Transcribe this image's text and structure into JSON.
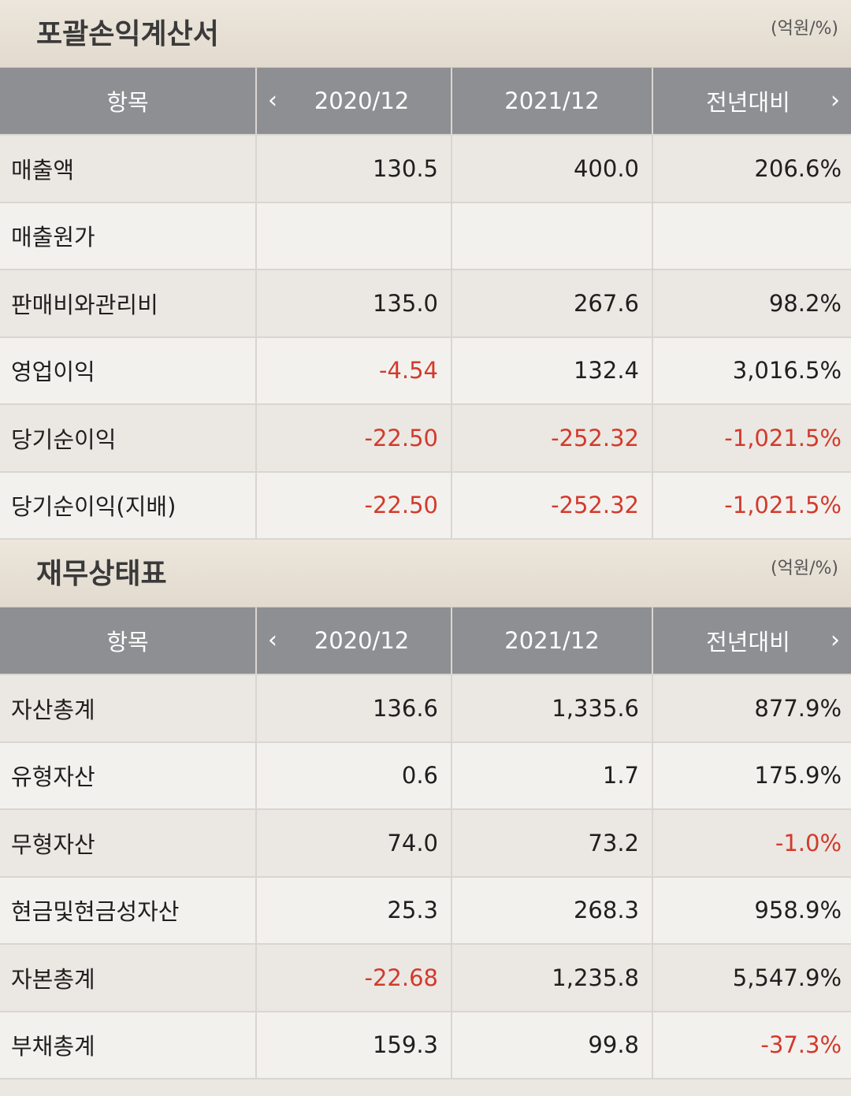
{
  "income": {
    "title": "포괄손익계산서",
    "unit": "(억원/%)",
    "headers": {
      "item": "항목",
      "prev_icon": "chevron-left-icon",
      "col1": "2020/12",
      "col2": "2021/12",
      "col3": "전년대비",
      "next_icon": "chevron-right-icon"
    },
    "rows": [
      {
        "label": "매출액",
        "v1": "130.5",
        "v2": "400.0",
        "v3": "206.6%"
      },
      {
        "label": "매출원가",
        "v1": "",
        "v2": "",
        "v3": ""
      },
      {
        "label": "판매비와관리비",
        "v1": "135.0",
        "v2": "267.6",
        "v3": "98.2%"
      },
      {
        "label": "영업이익",
        "v1": "-4.54",
        "v2": "132.4",
        "v3": "3,016.5%"
      },
      {
        "label": "당기순이익",
        "v1": "-22.50",
        "v2": "-252.32",
        "v3": "-1,021.5%"
      },
      {
        "label": "당기순이익(지배)",
        "v1": "-22.50",
        "v2": "-252.32",
        "v3": "-1,021.5%"
      }
    ]
  },
  "balance": {
    "title": "재무상태표",
    "unit": "(억원/%)",
    "headers": {
      "item": "항목",
      "prev_icon": "chevron-left-icon",
      "col1": "2020/12",
      "col2": "2021/12",
      "col3": "전년대비",
      "next_icon": "chevron-right-icon"
    },
    "rows": [
      {
        "label": "자산총계",
        "v1": "136.6",
        "v2": "1,335.6",
        "v3": "877.9%"
      },
      {
        "label": "유형자산",
        "v1": "0.6",
        "v2": "1.7",
        "v3": "175.9%"
      },
      {
        "label": "무형자산",
        "v1": "74.0",
        "v2": "73.2",
        "v3": "-1.0%"
      },
      {
        "label": "현금및현금성자산",
        "v1": "25.3",
        "v2": "268.3",
        "v3": "958.9%"
      },
      {
        "label": "자본총계",
        "v1": "-22.68",
        "v2": "1,235.8",
        "v3": "5,547.9%"
      },
      {
        "label": "부채총계",
        "v1": "159.3",
        "v2": "99.8",
        "v3": "-37.3%"
      }
    ]
  },
  "colors": {
    "header_bg": "#8e8f92",
    "negative": "#d23a2c",
    "row_even": "#ebe7e2",
    "row_odd": "#f3f1ee"
  }
}
